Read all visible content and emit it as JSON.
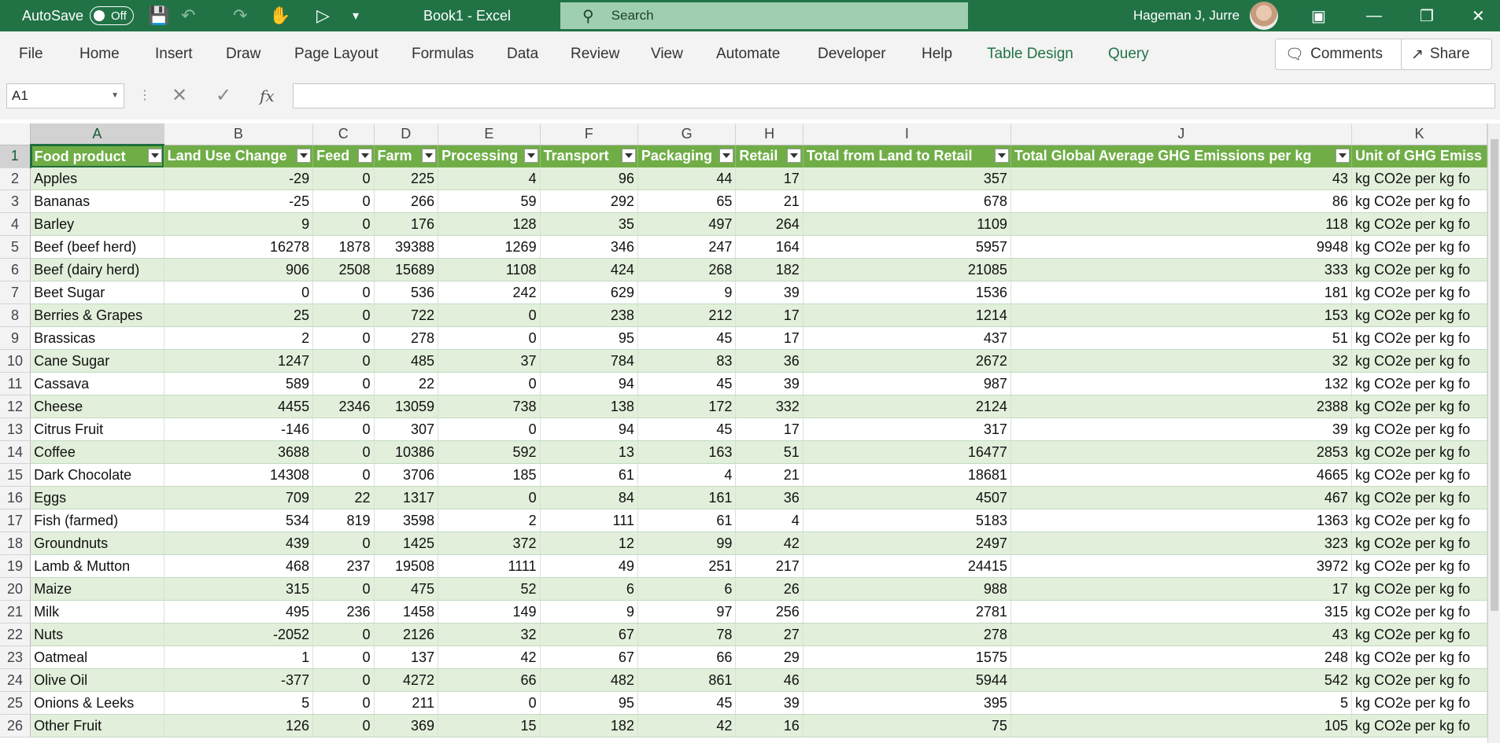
{
  "titlebar": {
    "autosave_label": "AutoSave",
    "autosave_state": "Off",
    "title": "Book1  -  Excel",
    "search_placeholder": "Search",
    "user_name": "Hageman J, Jurre"
  },
  "ribbon": {
    "tabs": [
      "File",
      "Home",
      "Insert",
      "Draw",
      "Page Layout",
      "Formulas",
      "Data",
      "Review",
      "View",
      "Automate",
      "Developer",
      "Help",
      "Table Design",
      "Query"
    ],
    "comments_label": "Comments",
    "share_label": "Share"
  },
  "formula_bar": {
    "name_box": "A1",
    "fx": "fx",
    "value": ""
  },
  "sheet": {
    "column_letters": [
      "A",
      "B",
      "C",
      "D",
      "E",
      "F",
      "G",
      "H",
      "I",
      "J",
      "K"
    ],
    "selected_column": "A",
    "selected_row": 1,
    "headers": [
      "Food product",
      "Land Use Change",
      "Feed",
      "Farm",
      "Processing",
      "Transport",
      "Packaging",
      "Retail",
      "Total from Land to Retail",
      "Total Global Average GHG Emissions per kg",
      "Unit of GHG Emiss"
    ],
    "rows": [
      {
        "n": "2",
        "cells": [
          "Apples",
          "-29",
          "0",
          "225",
          "4",
          "96",
          "44",
          "17",
          "357",
          "43",
          "kg CO2e per kg fo"
        ]
      },
      {
        "n": "3",
        "cells": [
          "Bananas",
          "-25",
          "0",
          "266",
          "59",
          "292",
          "65",
          "21",
          "678",
          "86",
          "kg CO2e per kg fo"
        ]
      },
      {
        "n": "4",
        "cells": [
          "Barley",
          "9",
          "0",
          "176",
          "128",
          "35",
          "497",
          "264",
          "1109",
          "118",
          "kg CO2e per kg fo"
        ]
      },
      {
        "n": "5",
        "cells": [
          "Beef (beef herd)",
          "16278",
          "1878",
          "39388",
          "1269",
          "346",
          "247",
          "164",
          "5957",
          "9948",
          "kg CO2e per kg fo"
        ]
      },
      {
        "n": "6",
        "cells": [
          "Beef (dairy herd)",
          "906",
          "2508",
          "15689",
          "1108",
          "424",
          "268",
          "182",
          "21085",
          "333",
          "kg CO2e per kg fo"
        ]
      },
      {
        "n": "7",
        "cells": [
          "Beet Sugar",
          "0",
          "0",
          "536",
          "242",
          "629",
          "9",
          "39",
          "1536",
          "181",
          "kg CO2e per kg fo"
        ]
      },
      {
        "n": "8",
        "cells": [
          "Berries & Grapes",
          "25",
          "0",
          "722",
          "0",
          "238",
          "212",
          "17",
          "1214",
          "153",
          "kg CO2e per kg fo"
        ]
      },
      {
        "n": "9",
        "cells": [
          "Brassicas",
          "2",
          "0",
          "278",
          "0",
          "95",
          "45",
          "17",
          "437",
          "51",
          "kg CO2e per kg fo"
        ]
      },
      {
        "n": "10",
        "cells": [
          "Cane Sugar",
          "1247",
          "0",
          "485",
          "37",
          "784",
          "83",
          "36",
          "2672",
          "32",
          "kg CO2e per kg fo"
        ]
      },
      {
        "n": "11",
        "cells": [
          "Cassava",
          "589",
          "0",
          "22",
          "0",
          "94",
          "45",
          "39",
          "987",
          "132",
          "kg CO2e per kg fo"
        ]
      },
      {
        "n": "12",
        "cells": [
          "Cheese",
          "4455",
          "2346",
          "13059",
          "738",
          "138",
          "172",
          "332",
          "2124",
          "2388",
          "kg CO2e per kg fo"
        ]
      },
      {
        "n": "13",
        "cells": [
          "Citrus Fruit",
          "-146",
          "0",
          "307",
          "0",
          "94",
          "45",
          "17",
          "317",
          "39",
          "kg CO2e per kg fo"
        ]
      },
      {
        "n": "14",
        "cells": [
          "Coffee",
          "3688",
          "0",
          "10386",
          "592",
          "13",
          "163",
          "51",
          "16477",
          "2853",
          "kg CO2e per kg fo"
        ]
      },
      {
        "n": "15",
        "cells": [
          "Dark Chocolate",
          "14308",
          "0",
          "3706",
          "185",
          "61",
          "4",
          "21",
          "18681",
          "4665",
          "kg CO2e per kg fo"
        ]
      },
      {
        "n": "16",
        "cells": [
          "Eggs",
          "709",
          "22",
          "1317",
          "0",
          "84",
          "161",
          "36",
          "4507",
          "467",
          "kg CO2e per kg fo"
        ]
      },
      {
        "n": "17",
        "cells": [
          "Fish (farmed)",
          "534",
          "819",
          "3598",
          "2",
          "111",
          "61",
          "4",
          "5183",
          "1363",
          "kg CO2e per kg fo"
        ]
      },
      {
        "n": "18",
        "cells": [
          "Groundnuts",
          "439",
          "0",
          "1425",
          "372",
          "12",
          "99",
          "42",
          "2497",
          "323",
          "kg CO2e per kg fo"
        ]
      },
      {
        "n": "19",
        "cells": [
          "Lamb & Mutton",
          "468",
          "237",
          "19508",
          "1111",
          "49",
          "251",
          "217",
          "24415",
          "3972",
          "kg CO2e per kg fo"
        ]
      },
      {
        "n": "20",
        "cells": [
          "Maize",
          "315",
          "0",
          "475",
          "52",
          "6",
          "6",
          "26",
          "988",
          "17",
          "kg CO2e per kg fo"
        ]
      },
      {
        "n": "21",
        "cells": [
          "Milk",
          "495",
          "236",
          "1458",
          "149",
          "9",
          "97",
          "256",
          "2781",
          "315",
          "kg CO2e per kg fo"
        ]
      },
      {
        "n": "22",
        "cells": [
          "Nuts",
          "-2052",
          "0",
          "2126",
          "32",
          "67",
          "78",
          "27",
          "278",
          "43",
          "kg CO2e per kg fo"
        ]
      },
      {
        "n": "23",
        "cells": [
          "Oatmeal",
          "1",
          "0",
          "137",
          "42",
          "67",
          "66",
          "29",
          "1575",
          "248",
          "kg CO2e per kg fo"
        ]
      },
      {
        "n": "24",
        "cells": [
          "Olive Oil",
          "-377",
          "0",
          "4272",
          "66",
          "482",
          "861",
          "46",
          "5944",
          "542",
          "kg CO2e per kg fo"
        ]
      },
      {
        "n": "25",
        "cells": [
          "Onions & Leeks",
          "5",
          "0",
          "211",
          "0",
          "95",
          "45",
          "39",
          "395",
          "5",
          "kg CO2e per kg fo"
        ]
      },
      {
        "n": "26",
        "cells": [
          "Other Fruit",
          "126",
          "0",
          "369",
          "15",
          "182",
          "42",
          "16",
          "75",
          "105",
          "kg CO2e per kg fo"
        ]
      }
    ]
  }
}
